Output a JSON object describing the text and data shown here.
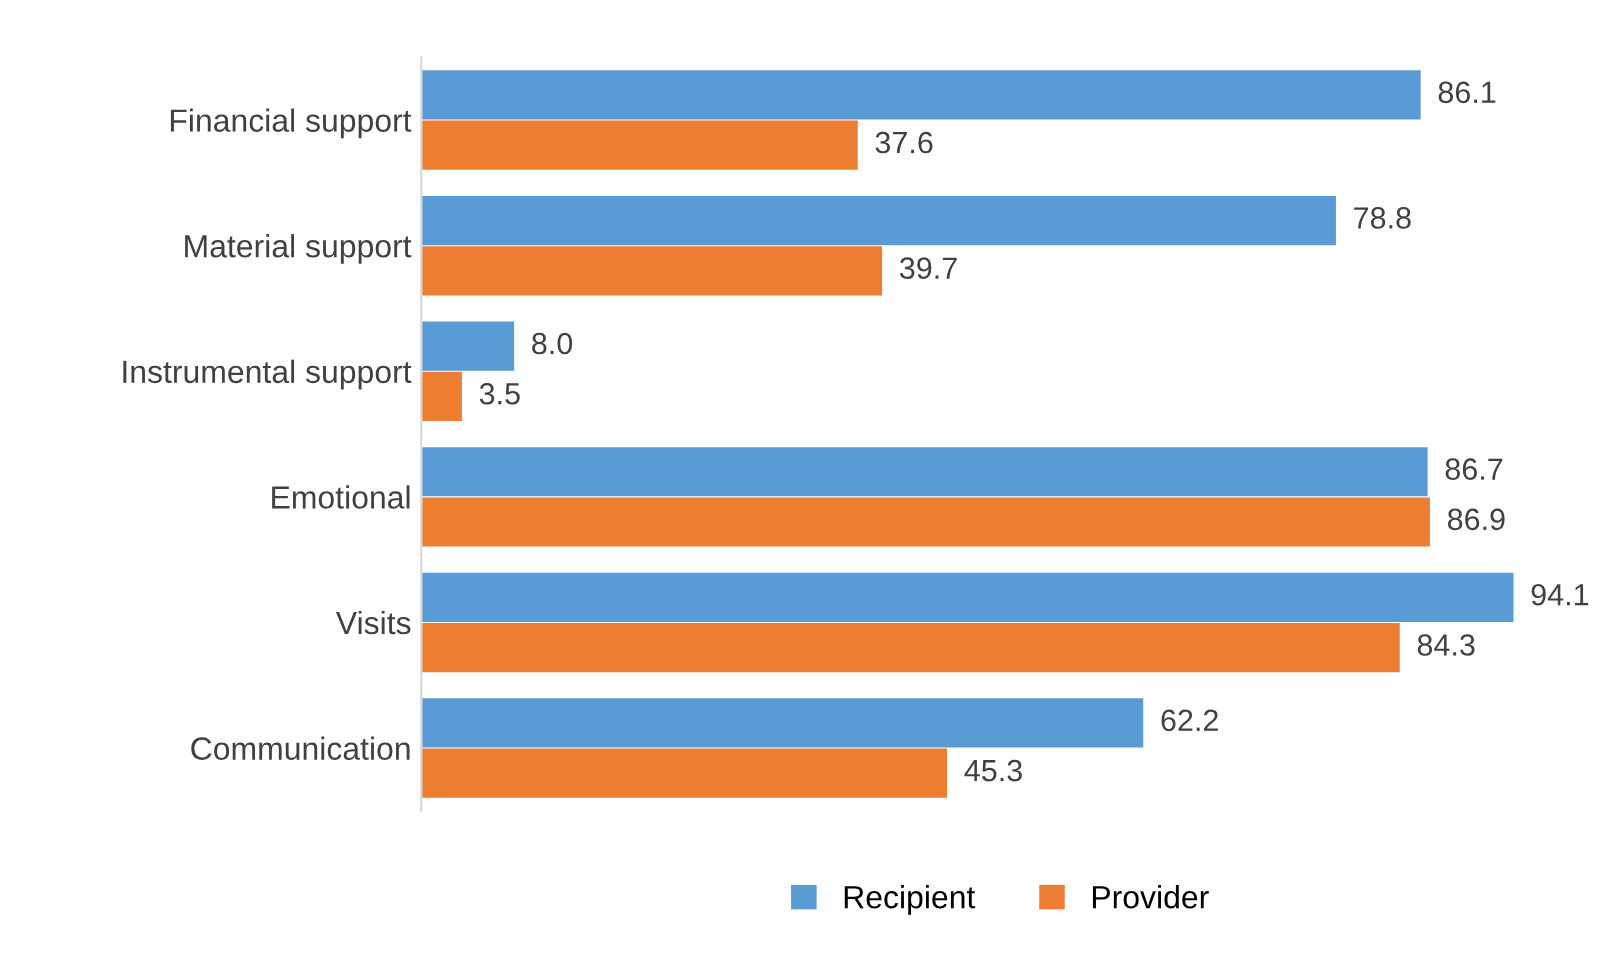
{
  "chart_data": {
    "type": "bar",
    "orientation": "horizontal",
    "categories": [
      "Financial support",
      "Material support",
      "Instrumental support",
      "Emotional",
      "Visits",
      "Communication"
    ],
    "series": [
      {
        "name": "Recipient",
        "color": "#5b9bd5",
        "values": [
          86.1,
          78.8,
          8.0,
          86.7,
          94.1,
          62.2
        ],
        "value_labels": [
          "86.1",
          "78.8",
          "8.0",
          "86.7",
          "94.1",
          "62.2"
        ]
      },
      {
        "name": "Provider",
        "color": "#ed7d31",
        "values": [
          37.6,
          39.7,
          3.5,
          86.9,
          84.3,
          45.3
        ],
        "value_labels": [
          "37.6",
          "39.7",
          "3.5",
          "86.9",
          "84.3",
          "45.3"
        ]
      }
    ],
    "legend": "bottom",
    "grid": false,
    "tick_labels": "y"
  }
}
